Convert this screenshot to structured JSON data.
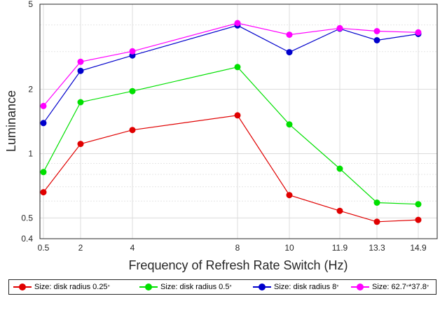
{
  "chart_data": {
    "type": "line",
    "xlabel": "Frequency of Refresh Rate Switch (Hz)",
    "ylabel": "Luminance",
    "x_tick_labels": [
      "0.5",
      "2",
      "4",
      "8",
      "10",
      "11.9",
      "13.3",
      "14.9"
    ],
    "y_scale": "log",
    "ylim": [
      0.4,
      5
    ],
    "y_ticks": [
      0.4,
      0.5,
      1,
      2,
      5
    ],
    "y_tick_labels": [
      "0.4",
      "0.5",
      "1",
      "2",
      "5"
    ],
    "grid": true,
    "legend_position": "bottom",
    "series": [
      {
        "name": "Size: disk radius 0.25",
        "superscript": "°",
        "color": "#e00000",
        "values": [
          0.66,
          1.11,
          1.29,
          1.51,
          0.64,
          0.54,
          0.48,
          0.49
        ]
      },
      {
        "name": "Size: disk radius 0.5",
        "superscript": "°",
        "color": "#00e000",
        "values": [
          0.82,
          1.74,
          1.96,
          2.54,
          1.37,
          0.85,
          0.59,
          0.58
        ]
      },
      {
        "name": "Size: disk radius 8",
        "superscript": "°",
        "color": "#0000cc",
        "values": [
          1.39,
          2.44,
          2.88,
          3.98,
          2.98,
          3.84,
          3.39,
          3.63
        ]
      },
      {
        "name": "Size: 62.7",
        "superscript": "°",
        "name_suffix": "*37.8",
        "color": "#ff00ff",
        "values": [
          1.67,
          2.69,
          3.01,
          4.08,
          3.6,
          3.86,
          3.74,
          3.69
        ]
      }
    ]
  }
}
